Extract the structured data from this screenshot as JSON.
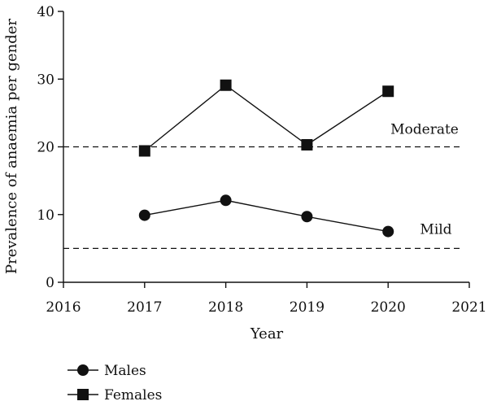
{
  "chart_data": {
    "type": "line",
    "xlabel": "Year",
    "ylabel": "Prevalence of anaemia per gender",
    "xlim": [
      2016,
      2021
    ],
    "ylim": [
      0,
      40
    ],
    "x_ticks": [
      2016,
      2017,
      2018,
      2019,
      2020,
      2021
    ],
    "y_ticks": [
      0,
      10,
      20,
      30,
      40
    ],
    "grid": false,
    "legend_position": "bottom-left",
    "series": [
      {
        "name": "Males",
        "marker": "circle",
        "x": [
          2017,
          2018,
          2019,
          2020
        ],
        "values": [
          9.9,
          12.1,
          9.7,
          7.5
        ]
      },
      {
        "name": "Females",
        "marker": "square",
        "x": [
          2017,
          2018,
          2019,
          2020
        ],
        "values": [
          19.4,
          29.1,
          20.3,
          28.2
        ]
      }
    ],
    "reference_lines": [
      {
        "label": "Moderate",
        "y": 20
      },
      {
        "label": "Mild",
        "y": 5
      }
    ]
  }
}
